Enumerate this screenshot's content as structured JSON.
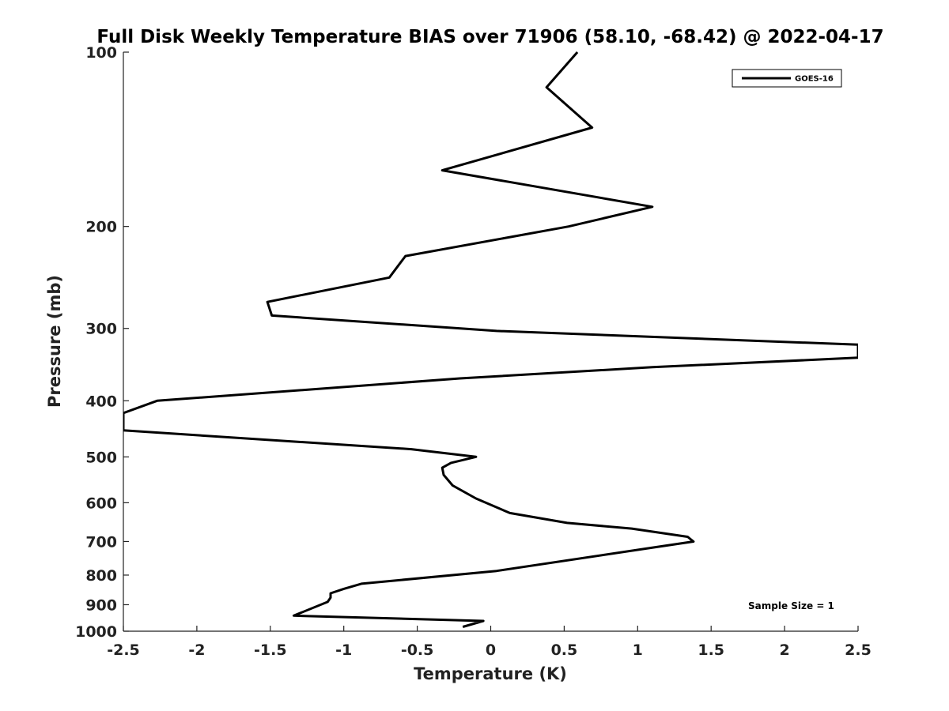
{
  "chart_data": {
    "type": "line",
    "title": "Full Disk Weekly Temperature BIAS over 71906 (58.10, -68.42) @ 2022-04-17",
    "xlabel": "Temperature (K)",
    "ylabel": "Pressure (mb)",
    "xlim": [
      -2.5,
      2.5
    ],
    "ylim": [
      1000,
      100
    ],
    "y_scale": "log",
    "y_reversed": true,
    "grid": false,
    "legend_position": "top-right",
    "x_ticks": [
      "-2.5",
      "-2",
      "-1.5",
      "-1",
      "-0.5",
      "0",
      "0.5",
      "1",
      "1.5",
      "2",
      "2.5"
    ],
    "y_ticks": [
      "100",
      "200",
      "300",
      "400",
      "500",
      "600",
      "700",
      "800",
      "900",
      "1000"
    ],
    "annotation": "Sample Size = 1",
    "series": [
      {
        "name": "GOES-16",
        "color": "#000000",
        "x": [
          0.59,
          0.38,
          0.69,
          -0.33,
          1.1,
          0.53,
          -0.58,
          -0.69,
          -1.52,
          -1.49,
          0.04,
          2.5,
          2.5,
          1.1,
          -0.21,
          -2.27,
          -2.5,
          -2.5,
          -0.54,
          -0.1,
          -0.27,
          -0.33,
          -0.32,
          -0.26,
          -0.1,
          0.13,
          0.52,
          0.96,
          1.34,
          1.38,
          1.09,
          0.04,
          -0.88,
          -1.0,
          -1.09,
          -1.09,
          -1.11,
          -1.34,
          -0.05,
          -0.19
        ],
        "y": [
          100,
          115,
          135,
          160,
          185,
          200,
          225,
          245,
          270,
          285,
          303,
          320,
          337,
          350,
          366,
          400,
          420,
          450,
          485,
          500,
          512,
          522,
          537,
          560,
          590,
          625,
          650,
          665,
          687,
          700,
          718,
          787,
          828,
          845,
          860,
          875,
          890,
          940,
          960,
          983
        ]
      }
    ]
  }
}
